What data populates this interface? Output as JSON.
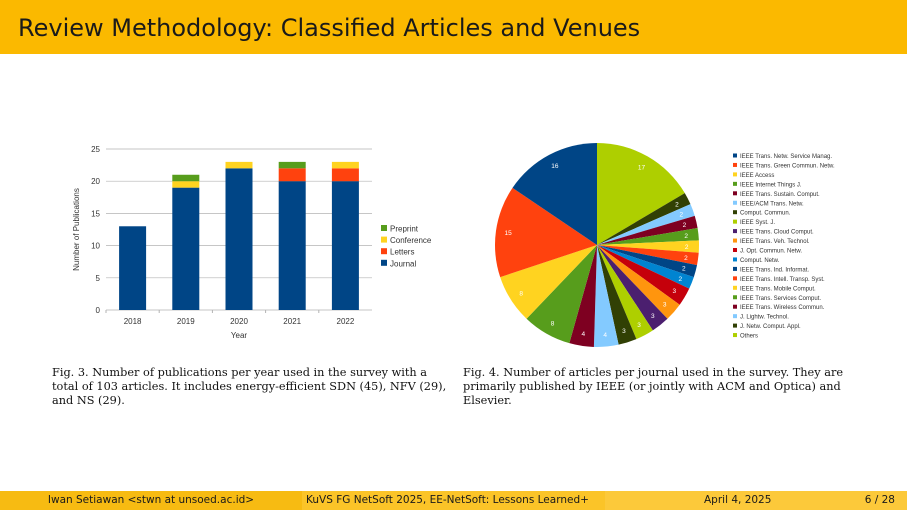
{
  "slide": {
    "title": "Review Methodology: Classified Articles and Venues"
  },
  "captions": {
    "fig3": "Fig. 3. Number of publications per year used in the survey with a total of 103 articles. It includes energy-efficient SDN (45), NFV (29), and NS (29).",
    "fig4": "Fig. 4. Number of articles per journal used in the survey. They are primarily published by IEEE (or jointly with ACM and Optica) and Elsevier."
  },
  "footer": {
    "author": "Iwan Setiawan <stwn at unsoed.ac.id>",
    "talk": "KuVS FG NetSoft 2025, EE-NetSoft: Lessons Learned+",
    "date": "April 4, 2025",
    "page": "6 / 28"
  },
  "chart_data": [
    {
      "type": "bar",
      "stacked": true,
      "title": "",
      "xlabel": "Year",
      "ylabel": "Number of Publications",
      "ylim": [
        0,
        25
      ],
      "yticks": [
        0,
        5,
        10,
        15,
        20,
        25
      ],
      "categories": [
        "2018",
        "2019",
        "2020",
        "2021",
        "2022"
      ],
      "series": [
        {
          "name": "Journal",
          "color": "#004586",
          "values": [
            13,
            19,
            22,
            20,
            20
          ]
        },
        {
          "name": "Letters",
          "color": "#ff420e",
          "values": [
            0,
            0,
            0,
            2,
            2
          ]
        },
        {
          "name": "Conference",
          "color": "#ffd320",
          "values": [
            0,
            1,
            1,
            0,
            1
          ]
        },
        {
          "name": "Preprint",
          "color": "#579d1c",
          "values": [
            0,
            1,
            0,
            1,
            0
          ]
        }
      ],
      "legend_order": [
        "Preprint",
        "Conference",
        "Letters",
        "Journal"
      ],
      "legend": "right",
      "grid": true
    },
    {
      "type": "pie",
      "title": "",
      "legend": "right",
      "slices": [
        {
          "label": "IEEE Trans. Netw. Service Manag.",
          "value": 16,
          "color": "#004586"
        },
        {
          "label": "IEEE Trans. Green Commun. Netw.",
          "value": 15,
          "color": "#ff420e"
        },
        {
          "label": "IEEE Access",
          "value": 8,
          "color": "#ffd320"
        },
        {
          "label": "IEEE Internet Things J.",
          "value": 8,
          "color": "#579d1c"
        },
        {
          "label": "IEEE Trans. Sustain. Comput.",
          "value": 4,
          "color": "#7e0021"
        },
        {
          "label": "IEEE/ACM Trans. Netw.",
          "value": 4,
          "color": "#83caff"
        },
        {
          "label": "Comput. Commun.",
          "value": 3,
          "color": "#314004"
        },
        {
          "label": "IEEE Syst. J.",
          "value": 3,
          "color": "#aecf00"
        },
        {
          "label": "IEEE Trans. Cloud Comput.",
          "value": 3,
          "color": "#4b1f6f"
        },
        {
          "label": "IEEE Trans. Veh. Technol.",
          "value": 3,
          "color": "#ff950e"
        },
        {
          "label": "J. Opt. Commun. Netw.",
          "value": 3,
          "color": "#c5000b"
        },
        {
          "label": "Comput. Netw.",
          "value": 2,
          "color": "#0084d1"
        },
        {
          "label": "IEEE Trans. Ind. Informat.",
          "value": 2,
          "color": "#004586"
        },
        {
          "label": "IEEE Trans. Intell. Transp. Syst.",
          "value": 2,
          "color": "#ff420e"
        },
        {
          "label": "IEEE Trans. Mobile Comput.",
          "value": 2,
          "color": "#ffd320"
        },
        {
          "label": "IEEE Trans. Services Comput.",
          "value": 2,
          "color": "#579d1c"
        },
        {
          "label": "IEEE Trans. Wireless Commun.",
          "value": 2,
          "color": "#7e0021"
        },
        {
          "label": "J. Lightw. Technol.",
          "value": 2,
          "color": "#83caff"
        },
        {
          "label": "J. Netw. Comput. Appl.",
          "value": 2,
          "color": "#314004"
        },
        {
          "label": "Others",
          "value": 17,
          "color": "#aecf00"
        }
      ]
    }
  ]
}
